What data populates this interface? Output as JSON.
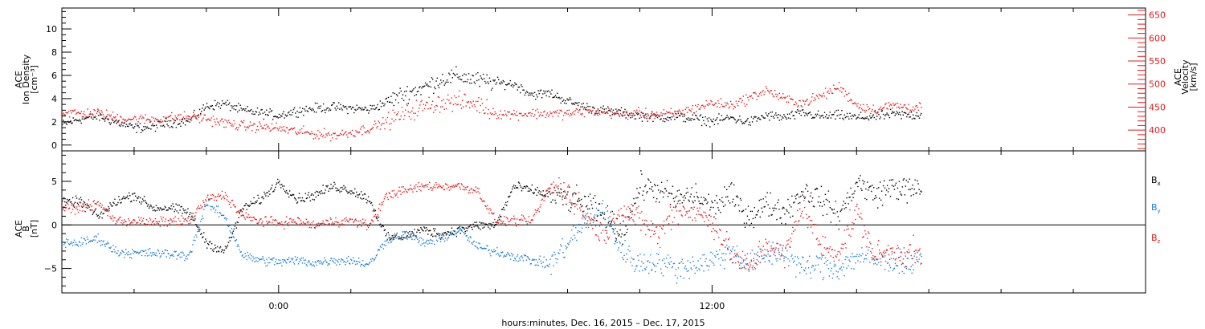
{
  "figure": {
    "xlabel": "hours:minutes, Dec. 16, 2015 – Dec. 17, 2015",
    "time_ticks": [
      {
        "h": 0,
        "label": "0:00"
      },
      {
        "h": 12,
        "label": "12:00"
      }
    ],
    "xlim_hours": [
      -6,
      24
    ],
    "data_end_hour": 17.8
  },
  "colors": {
    "black": "#000000",
    "red": "#e41a1c",
    "blue": "#1a7fd0"
  },
  "chart_data": [
    {
      "type": "scatter",
      "panel": "top",
      "left_axis": {
        "label_lines": [
          "ACE",
          "Ion Density",
          "[cm⁻³]"
        ],
        "ylim": [
          -0.5,
          11.8
        ],
        "ticks": [
          0,
          2,
          4,
          6,
          8,
          10
        ]
      },
      "right_axis": {
        "label_lines": [
          "ACE",
          "Velocity",
          "[km/s]"
        ],
        "ylim": [
          355,
          665
        ],
        "ticks": [
          400,
          450,
          500,
          550,
          600,
          650
        ],
        "color": "#e41a1c"
      },
      "series": [
        {
          "color_key": "black",
          "axis": "left",
          "x": [
            -6,
            -5.5,
            -5,
            -4.5,
            -4,
            -3.5,
            -3,
            -2.5,
            -2,
            -1.5,
            -1,
            -0.5,
            0,
            0.5,
            1,
            1.5,
            2,
            2.5,
            3,
            3.5,
            4,
            4.5,
            5,
            5.5,
            6,
            6.5,
            7,
            7.5,
            8,
            8.5,
            9,
            9.5,
            10,
            10.5,
            11,
            11.5,
            12,
            12.5,
            13,
            13.5,
            14,
            14.5,
            15,
            15.5,
            16,
            16.5,
            17,
            17.5,
            17.8
          ],
          "y": [
            1.8,
            2.3,
            2.5,
            2.0,
            1.5,
            1.6,
            2.0,
            2.1,
            3.4,
            3.6,
            3.0,
            2.8,
            2.6,
            3.0,
            3.2,
            3.3,
            3.2,
            3.1,
            3.8,
            4.5,
            5.0,
            5.7,
            6.0,
            5.6,
            5.4,
            5.3,
            4.4,
            4.5,
            3.8,
            3.3,
            3.0,
            2.8,
            2.6,
            2.4,
            2.5,
            2.3,
            2.1,
            2.4,
            2.0,
            2.6,
            2.4,
            2.8,
            2.5,
            2.6,
            2.4,
            2.5,
            2.7,
            2.6,
            2.7
          ]
        },
        {
          "color_key": "red",
          "axis": "right",
          "x": [
            -6,
            -5.5,
            -5,
            -4.5,
            -4,
            -3.5,
            -3,
            -2.5,
            -2,
            -1.5,
            -1,
            -0.5,
            0,
            0.5,
            1,
            1.5,
            2,
            2.5,
            3,
            3.5,
            4,
            4.5,
            5,
            5.5,
            6,
            6.5,
            7,
            7.5,
            8,
            8.5,
            9,
            9.5,
            10,
            10.5,
            11,
            11.5,
            12,
            12.5,
            13,
            13.5,
            14,
            14.5,
            15,
            15.5,
            16,
            16.5,
            17,
            17.5,
            17.8
          ],
          "y": [
            440,
            437,
            438,
            428,
            425,
            424,
            428,
            430,
            426,
            416,
            410,
            408,
            405,
            398,
            393,
            390,
            396,
            405,
            420,
            438,
            452,
            462,
            462,
            458,
            437,
            436,
            437,
            437,
            437,
            442,
            440,
            435,
            437,
            434,
            438,
            448,
            460,
            455,
            470,
            488,
            468,
            460,
            475,
            495,
            455,
            445,
            455,
            450,
            452
          ]
        }
      ]
    },
    {
      "type": "scatter",
      "panel": "bottom",
      "left_axis": {
        "label_lines": [
          "ACE",
          "B",
          "[nT]"
        ],
        "ylim": [
          -7.8,
          8.5
        ],
        "ticks": [
          -5,
          0,
          5
        ]
      },
      "legend": [
        {
          "label": "B",
          "sub": "x",
          "color_key": "black"
        },
        {
          "label": "B",
          "sub": "y",
          "color_key": "blue"
        },
        {
          "label": "B",
          "sub": "z",
          "color_key": "red"
        }
      ],
      "series": [
        {
          "color_key": "black",
          "x": [
            -6,
            -5.5,
            -5,
            -4.5,
            -4,
            -3.5,
            -3,
            -2.5,
            -2,
            -1.5,
            -1,
            -0.5,
            0,
            0.5,
            1,
            1.5,
            2,
            2.5,
            3,
            3.5,
            4,
            4.5,
            5,
            5.5,
            6,
            6.5,
            7,
            7.5,
            8,
            8.5,
            9,
            9.5,
            10,
            10.5,
            11,
            11.5,
            12,
            12.5,
            13,
            13.5,
            14,
            14.5,
            15,
            15.5,
            16,
            16.5,
            17,
            17.5,
            17.8
          ],
          "y": [
            2.5,
            2.8,
            1.0,
            2.8,
            3.5,
            2.0,
            2.0,
            1.5,
            -2.0,
            -3.0,
            2.0,
            3.0,
            5.0,
            3.0,
            3.5,
            4.5,
            4.0,
            3.0,
            -1.5,
            -1.2,
            -0.5,
            -1.0,
            -0.5,
            0.0,
            0.0,
            4.5,
            4.0,
            3.5,
            3.0,
            2.5,
            1.0,
            -1.0,
            4.5,
            4.0,
            3.0,
            3.5,
            2.0,
            3.5,
            1.0,
            2.5,
            1.5,
            4.0,
            3.0,
            1.0,
            5.0,
            3.5,
            4.5,
            4.0,
            4.0
          ]
        },
        {
          "color_key": "blue",
          "x": [
            -6,
            -5.5,
            -5,
            -4.5,
            -4,
            -3.5,
            -3,
            -2.5,
            -2,
            -1.5,
            -1,
            -0.5,
            0,
            0.5,
            1,
            1.5,
            2,
            2.5,
            3,
            3.5,
            4,
            4.5,
            5,
            5.5,
            6,
            6.5,
            7,
            7.5,
            8,
            8.5,
            9,
            9.5,
            10,
            10.5,
            11,
            11.5,
            12,
            12.5,
            13,
            13.5,
            14,
            14.5,
            15,
            15.5,
            16,
            16.5,
            17,
            17.5,
            17.8
          ],
          "y": [
            -2.0,
            -2.0,
            -1.5,
            -3.0,
            -3.2,
            -3.2,
            -3.3,
            -3.5,
            2.5,
            1.0,
            -3.5,
            -4.0,
            -4.2,
            -4.0,
            -4.3,
            -4.0,
            -4.0,
            -4.5,
            -1.5,
            -1.0,
            -2.0,
            -1.5,
            -0.5,
            -2.5,
            -3.0,
            -3.5,
            -4.0,
            -4.5,
            -2.0,
            0.5,
            1.5,
            -3.0,
            -4.5,
            -4.0,
            -5.0,
            -4.5,
            -4.0,
            -3.0,
            -4.5,
            -3.5,
            -3.0,
            -5.0,
            -4.5,
            -5.0,
            -3.5,
            -4.0,
            -4.0,
            -4.5,
            -3.0
          ]
        },
        {
          "color_key": "red",
          "x": [
            -6,
            -5.5,
            -5,
            -4.5,
            -4,
            -3.5,
            -3,
            -2.5,
            -2,
            -1.5,
            -1,
            -0.5,
            0,
            0.5,
            1,
            1.5,
            2,
            2.5,
            3,
            3.5,
            4,
            4.5,
            5,
            5.5,
            6,
            6.5,
            7,
            7.5,
            8,
            8.5,
            9,
            9.5,
            10,
            10.5,
            11,
            11.5,
            12,
            12.5,
            13,
            13.5,
            14,
            14.5,
            15,
            15.5,
            16,
            16.5,
            17,
            17.5,
            17.8
          ],
          "y": [
            2.0,
            2.0,
            2.5,
            0.5,
            0.5,
            0.3,
            0.5,
            0.5,
            3.0,
            3.5,
            1.0,
            0.5,
            0.3,
            0.5,
            0.0,
            0.5,
            0.5,
            0.0,
            3.5,
            4.0,
            4.5,
            4.5,
            4.5,
            4.0,
            0.5,
            0.5,
            0.5,
            4.5,
            4.0,
            1.0,
            -1.0,
            2.0,
            0.5,
            -1.0,
            2.0,
            1.5,
            0.5,
            -3.0,
            -5.0,
            -2.0,
            -3.5,
            2.5,
            -2.5,
            -3.0,
            1.5,
            -3.5,
            -3.0,
            -3.0,
            -4.0
          ]
        }
      ]
    }
  ]
}
